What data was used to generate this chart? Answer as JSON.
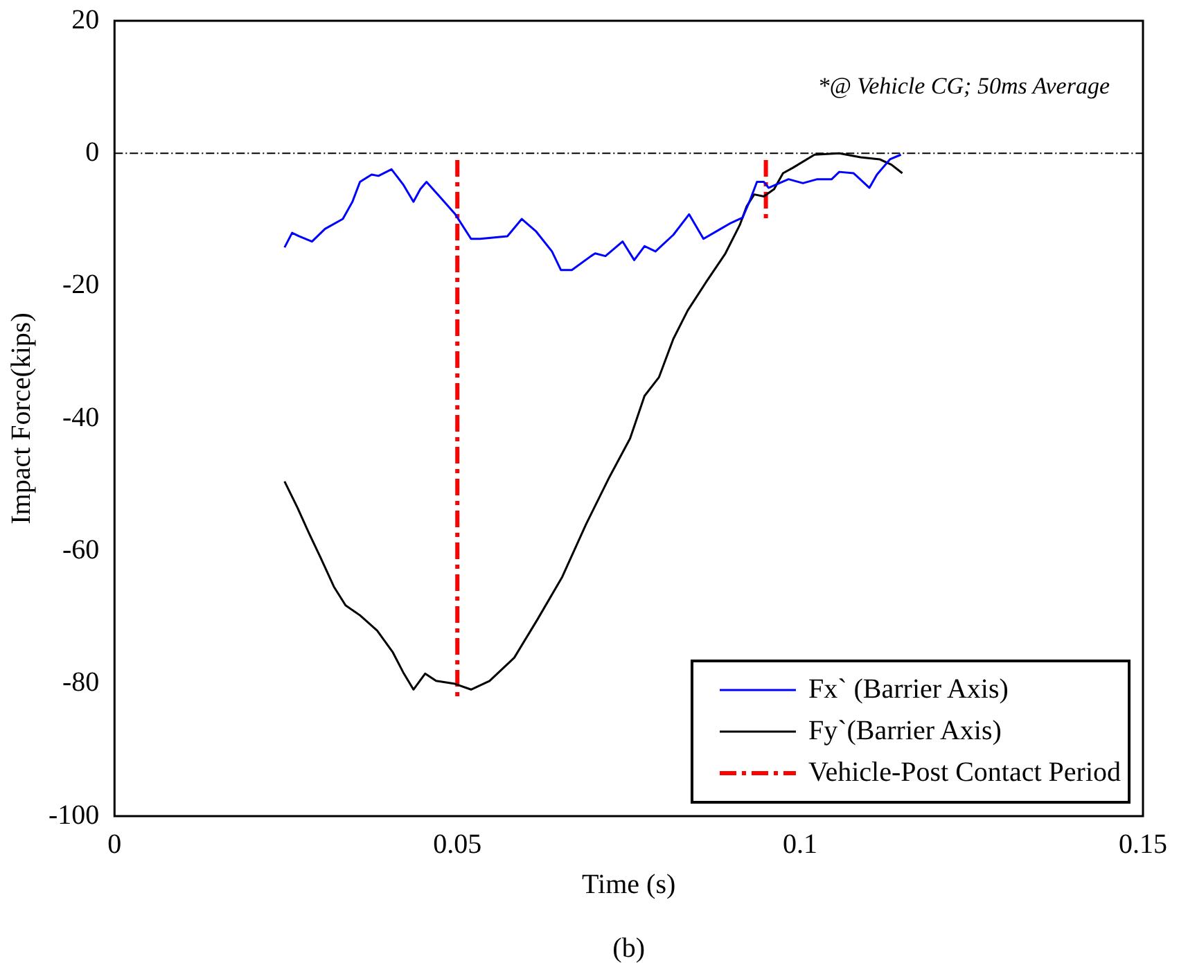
{
  "chart_data": {
    "type": "line",
    "xlabel": "Time (s)",
    "ylabel": "Impact Force(kips)",
    "annotations": [
      "*@ Vehicle CG; 50ms Average",
      "(b)"
    ],
    "xlim": [
      0,
      0.15
    ],
    "xticks": [
      0,
      0.05,
      0.1,
      0.15
    ],
    "ylim": [
      -100,
      20
    ],
    "yticks": [
      -100,
      -80,
      -60,
      -40,
      -20,
      0,
      20
    ],
    "grid": false,
    "legend": "bottom right",
    "marker": "none",
    "ref_lines": [
      {
        "axis": "y",
        "value": 0,
        "color": "#000000",
        "line_style": "dotted"
      }
    ],
    "series": [
      {
        "name": "Fx` (Barrier Axis)",
        "color": "#0000ff",
        "line_style": "solid",
        "x": [
          0.0248,
          0.0259,
          0.0269,
          0.0288,
          0.0307,
          0.0333,
          0.0347,
          0.0358,
          0.0375,
          0.0385,
          0.0404,
          0.0421,
          0.0436,
          0.0446,
          0.0455,
          0.0474,
          0.0497,
          0.052,
          0.0533,
          0.0573,
          0.0594,
          0.0615,
          0.0638,
          0.0651,
          0.0667,
          0.0695,
          0.0701,
          0.0716,
          0.0741,
          0.0758,
          0.0773,
          0.0789,
          0.0815,
          0.0838,
          0.0859,
          0.0884,
          0.0899,
          0.0916,
          0.0926,
          0.0937,
          0.0947,
          0.0954,
          0.0983,
          0.1004,
          0.1025,
          0.1046,
          0.1057,
          0.1078,
          0.1101,
          0.1112,
          0.1131,
          0.1147
        ],
        "values": [
          -14.2,
          -12.0,
          -12.5,
          -13.3,
          -11.4,
          -9.9,
          -7.3,
          -4.3,
          -3.2,
          -3.4,
          -2.4,
          -4.7,
          -7.3,
          -5.4,
          -4.3,
          -6.5,
          -9.2,
          -12.9,
          -12.9,
          -12.5,
          -9.9,
          -11.8,
          -14.8,
          -17.6,
          -17.6,
          -15.5,
          -15.1,
          -15.5,
          -13.3,
          -16.1,
          -14.0,
          -14.8,
          -12.3,
          -9.2,
          -12.9,
          -11.4,
          -10.5,
          -9.7,
          -7.3,
          -4.3,
          -4.3,
          -5.2,
          -3.9,
          -4.5,
          -3.9,
          -3.9,
          -2.8,
          -3.0,
          -5.2,
          -3.2,
          -0.9,
          -0.2
        ]
      },
      {
        "name": "Fy`(Barrier Axis)",
        "color": "#000000",
        "line_style": "solid",
        "x": [
          0.0248,
          0.0267,
          0.0284,
          0.0301,
          0.032,
          0.0337,
          0.0358,
          0.0383,
          0.0406,
          0.0421,
          0.0436,
          0.0453,
          0.0469,
          0.0495,
          0.052,
          0.0547,
          0.0583,
          0.0617,
          0.0653,
          0.0688,
          0.0722,
          0.0752,
          0.0773,
          0.0794,
          0.0815,
          0.0836,
          0.0863,
          0.0891,
          0.0912,
          0.0922,
          0.0933,
          0.0947,
          0.0962,
          0.0975,
          0.0989,
          0.1021,
          0.1057,
          0.1088,
          0.1116,
          0.1133,
          0.1149
        ],
        "values": [
          -49.5,
          -53.5,
          -57.4,
          -61.1,
          -65.4,
          -68.2,
          -69.7,
          -72.0,
          -75.3,
          -78.3,
          -80.9,
          -78.5,
          -79.6,
          -80.0,
          -80.9,
          -79.6,
          -76.1,
          -70.3,
          -63.9,
          -55.9,
          -48.8,
          -43.0,
          -36.6,
          -33.8,
          -28.0,
          -23.7,
          -19.4,
          -15.1,
          -10.8,
          -8.0,
          -6.2,
          -6.5,
          -5.4,
          -3.0,
          -2.2,
          -0.2,
          0.0,
          -0.6,
          -0.9,
          -1.7,
          -3.0
        ]
      },
      {
        "name": "Vehicle-Post Contact Period",
        "color": "#ff0000",
        "line_style": "dashed",
        "x": [
          0.05,
          0.05,
          0.0725,
          0.095,
          0.095
        ],
        "values": [
          -1,
          -82,
          null,
          -1,
          -10
        ]
      }
    ]
  }
}
